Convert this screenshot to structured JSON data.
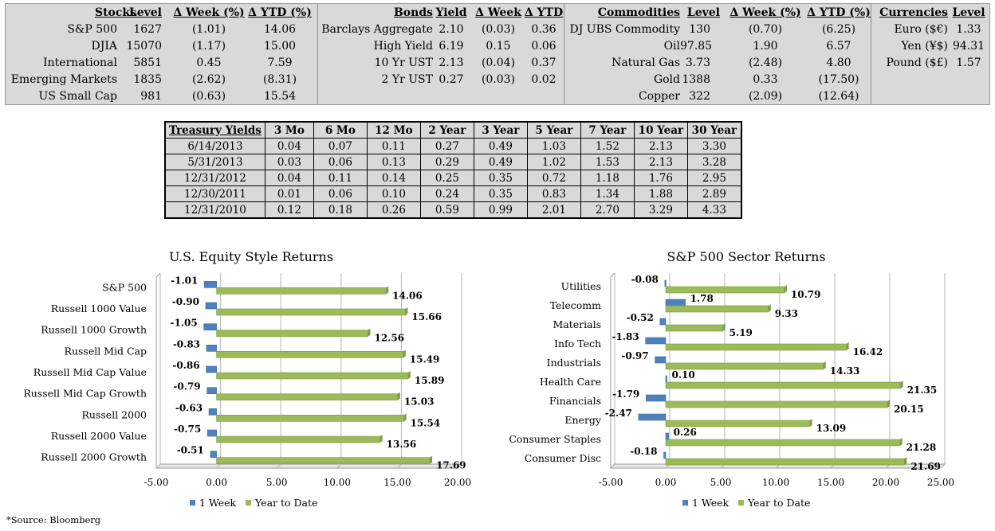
{
  "stocks": {
    "headers": [
      "Stocks",
      "Level",
      "Δ Week (%)",
      "Δ YTD (%)"
    ],
    "rows": [
      [
        "S&P 500",
        "1627",
        "(1.01)",
        "14.06"
      ],
      [
        "DJIA",
        "15070",
        "(1.17)",
        "15.00"
      ],
      [
        "International",
        "5851",
        "0.45",
        "7.59"
      ],
      [
        "Emerging Markets",
        "1835",
        "(2.62)",
        "(8.31)"
      ],
      [
        "US Small Cap",
        "981",
        "(0.63)",
        "15.54"
      ]
    ]
  },
  "bonds": {
    "headers": [
      "Bonds",
      "Yield",
      "Δ Week",
      "Δ YTD"
    ],
    "rows": [
      [
        "Barclays Aggregate",
        "2.10",
        "(0.03)",
        "0.36"
      ],
      [
        "High Yield",
        "6.19",
        "0.15",
        "0.06"
      ],
      [
        "10 Yr UST",
        "2.13",
        "(0.04)",
        "0.37"
      ],
      [
        "2 Yr UST",
        "0.27",
        "(0.03)",
        "0.02"
      ]
    ]
  },
  "commodities": {
    "headers": [
      "Commodities",
      "Level",
      "Δ Week (%)",
      "Δ YTD (%)"
    ],
    "rows": [
      [
        "DJ UBS Commodity",
        "130",
        "(0.70)",
        "(6.25)"
      ],
      [
        "Oil",
        "97.85",
        "1.90",
        "6.57"
      ],
      [
        "Natural Gas",
        "3.73",
        "(2.48)",
        "4.80"
      ],
      [
        "Gold",
        "1388",
        "0.33",
        "(17.50)"
      ],
      [
        "Copper",
        "322",
        "(2.09)",
        "(12.64)"
      ]
    ]
  },
  "currencies": {
    "headers": [
      "Currencies",
      "Level"
    ],
    "rows": [
      [
        "Euro ($€)",
        "1.33"
      ],
      [
        "Yen (¥$)",
        "94.31"
      ],
      [
        "Pound ($£)",
        "1.57"
      ]
    ]
  },
  "treasury": {
    "headers": [
      "Treasury Yields",
      "3 Mo",
      "6 Mo",
      "12 Mo",
      "2 Year",
      "3 Year",
      "5 Year",
      "7 Year",
      "10 Year",
      "30 Year"
    ],
    "rows": [
      [
        "6/14/2013",
        "0.04",
        "0.07",
        "0.11",
        "0.27",
        "0.49",
        "1.03",
        "1.52",
        "2.13",
        "3.30"
      ],
      [
        "5/31/2013",
        "0.03",
        "0.06",
        "0.13",
        "0.29",
        "0.49",
        "1.02",
        "1.53",
        "2.13",
        "3.28"
      ],
      [
        "12/31/2012",
        "0.04",
        "0.11",
        "0.14",
        "0.25",
        "0.35",
        "0.72",
        "1.18",
        "1.76",
        "2.95"
      ],
      [
        "12/30/2011",
        "0.01",
        "0.06",
        "0.10",
        "0.24",
        "0.35",
        "0.83",
        "1.34",
        "1.88",
        "2.89"
      ],
      [
        "12/31/2010",
        "0.12",
        "0.18",
        "0.26",
        "0.59",
        "0.99",
        "2.01",
        "2.70",
        "3.29",
        "4.33"
      ]
    ]
  },
  "source": "*Source: Bloomberg",
  "colors": {
    "week": "#4f81bd",
    "ytd": "#9bbb59",
    "table_bg": "#d9d9d9"
  },
  "chart_data": [
    {
      "type": "bar",
      "orientation": "horizontal",
      "title": "U.S. Equity Style Returns",
      "categories": [
        "S&P 500",
        "Russell 1000 Value",
        "Russell 1000 Growth",
        "Russell Mid Cap",
        "Russell Mid Cap Value",
        "Russell Mid Cap Growth",
        "Russell 2000",
        "Russell 2000 Value",
        "Russell 2000 Growth"
      ],
      "series": [
        {
          "name": "1 Week",
          "values": [
            -1.01,
            -0.9,
            -1.05,
            -0.83,
            -0.86,
            -0.79,
            -0.63,
            -0.75,
            -0.51
          ],
          "labels": [
            "-1.01",
            "-0.90",
            "-1.05",
            "-0.83",
            "-0.86",
            "-0.79",
            "-0.63",
            "-0.75",
            "-0.51"
          ]
        },
        {
          "name": "Year to Date",
          "values": [
            14.06,
            15.66,
            12.56,
            15.49,
            15.89,
            15.03,
            15.54,
            13.56,
            17.69
          ],
          "labels": [
            "14.06",
            "15.66",
            "12.56",
            "15.49",
            "15.89",
            "15.03",
            "15.54",
            "13.56",
            "17.69"
          ]
        }
      ],
      "xlim": [
        -5,
        20
      ],
      "ticks": [
        "-5.00",
        "0.00",
        "5.00",
        "10.00",
        "15.00",
        "20.00"
      ],
      "tick_values": [
        -5,
        0,
        5,
        10,
        15,
        20
      ],
      "grid": true,
      "legend": "bottom"
    },
    {
      "type": "bar",
      "orientation": "horizontal",
      "title": "S&P 500 Sector Returns",
      "categories": [
        "Utilities",
        "Telecomm",
        "Materials",
        "Info Tech",
        "Industrials",
        "Health Care",
        "Financials",
        "Energy",
        "Consumer Staples",
        "Consumer Disc"
      ],
      "series": [
        {
          "name": "1 Week",
          "values": [
            -0.08,
            1.78,
            -0.52,
            -1.83,
            -0.97,
            0.1,
            -1.79,
            -2.47,
            0.26,
            -0.18
          ],
          "labels": [
            "-0.08",
            "1.78",
            "-0.52",
            "-1.83",
            "-0.97",
            "0.10",
            "-1.79",
            "-2.47",
            "0.26",
            "-0.18"
          ]
        },
        {
          "name": "Year to Date",
          "values": [
            10.79,
            9.33,
            5.19,
            16.42,
            14.33,
            21.35,
            20.15,
            13.09,
            21.28,
            21.69
          ],
          "labels": [
            "10.79",
            "9.33",
            "5.19",
            "16.42",
            "14.33",
            "21.35",
            "20.15",
            "13.09",
            "21.28",
            "21.69"
          ]
        }
      ],
      "xlim": [
        -5,
        25
      ],
      "ticks": [
        "-5.00",
        "0.00",
        "5.00",
        "10.00",
        "15.00",
        "20.00",
        "25.00"
      ],
      "tick_values": [
        -5,
        0,
        5,
        10,
        15,
        20,
        25
      ],
      "grid": true,
      "legend": "bottom"
    }
  ]
}
